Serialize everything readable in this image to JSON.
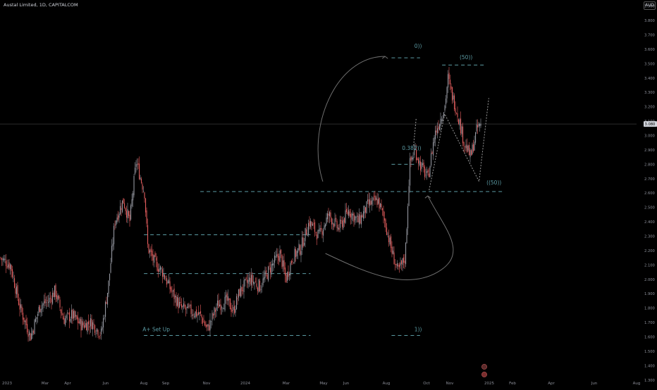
{
  "header": {
    "title": "Austal Limited, 1D, CAPITALCOM",
    "currency": "AUD"
  },
  "colors": {
    "background": "#000000",
    "up": "#9598a1",
    "down": "#e35d5d",
    "annotation": "#5b9aa3",
    "curve": "#6f6f6f",
    "axis_text": "#8c8f99"
  },
  "chart_data": {
    "type": "candlestick",
    "title": "Austal Limited, 1D, CAPITALCOM",
    "y_axis": {
      "range": [
        1.25,
        3.93
      ],
      "ticks": [
        "3.900",
        "3.800",
        "3.700",
        "3.600",
        "3.500",
        "3.400",
        "3.300",
        "3.200",
        "3.100",
        "3.000",
        "2.900",
        "2.800",
        "2.700",
        "2.600",
        "2.500",
        "2.400",
        "2.300",
        "2.200",
        "2.100",
        "2.000",
        "1.900",
        "1.800",
        "1.700",
        "1.600",
        "1.500",
        "1.400",
        "1.300"
      ],
      "current_price": "3.080"
    },
    "x_axis": {
      "ticks": [
        "2023",
        "Mar",
        "Apr",
        "Jun",
        "Aug",
        "Sep",
        "Nov",
        "2024",
        "Mar",
        "May",
        "Jun",
        "Aug",
        "Oct",
        "Nov",
        "2025",
        "Feb",
        "Apr",
        "Jun",
        "Aug"
      ]
    },
    "price_path": [
      [
        "2022-12-20",
        2.15
      ],
      [
        "2023-01-05",
        2.1
      ],
      [
        "2023-01-20",
        1.8
      ],
      [
        "2023-02-05",
        1.6
      ],
      [
        "2023-02-20",
        1.82
      ],
      [
        "2023-03-05",
        1.85
      ],
      [
        "2023-03-15",
        1.92
      ],
      [
        "2023-03-28",
        1.72
      ],
      [
        "2023-04-10",
        1.75
      ],
      [
        "2023-04-25",
        1.68
      ],
      [
        "2023-05-10",
        1.7
      ],
      [
        "2023-05-25",
        1.62
      ],
      [
        "2023-06-05",
        1.95
      ],
      [
        "2023-06-15",
        2.4
      ],
      [
        "2023-06-28",
        2.55
      ],
      [
        "2023-07-08",
        2.4
      ],
      [
        "2023-07-18",
        2.82
      ],
      [
        "2023-07-25",
        2.7
      ],
      [
        "2023-07-31",
        2.6
      ],
      [
        "2023-08-05",
        2.22
      ],
      [
        "2023-08-15",
        2.12
      ],
      [
        "2023-08-28",
        2.05
      ],
      [
        "2023-09-10",
        1.92
      ],
      [
        "2023-09-25",
        1.8
      ],
      [
        "2023-10-10",
        1.78
      ],
      [
        "2023-10-25",
        1.75
      ],
      [
        "2023-11-05",
        1.65
      ],
      [
        "2023-11-20",
        1.82
      ],
      [
        "2023-12-05",
        1.85
      ],
      [
        "2023-12-15",
        1.78
      ],
      [
        "2023-12-25",
        1.92
      ],
      [
        "2024-01-10",
        2.0
      ],
      [
        "2024-01-25",
        1.95
      ],
      [
        "2024-02-10",
        2.08
      ],
      [
        "2024-02-25",
        2.18
      ],
      [
        "2024-03-05",
        2.0
      ],
      [
        "2024-03-15",
        2.15
      ],
      [
        "2024-03-28",
        2.22
      ],
      [
        "2024-04-10",
        2.4
      ],
      [
        "2024-04-25",
        2.3
      ],
      [
        "2024-05-10",
        2.45
      ],
      [
        "2024-05-25",
        2.35
      ],
      [
        "2024-06-10",
        2.48
      ],
      [
        "2024-06-25",
        2.4
      ],
      [
        "2024-07-10",
        2.52
      ],
      [
        "2024-07-25",
        2.55
      ],
      [
        "2024-08-05",
        2.4
      ],
      [
        "2024-08-15",
        2.2
      ],
      [
        "2024-08-25",
        2.05
      ],
      [
        "2024-09-05",
        2.15
      ],
      [
        "2024-09-12",
        2.8
      ],
      [
        "2024-09-20",
        2.9
      ],
      [
        "2024-09-28",
        2.8
      ],
      [
        "2024-10-10",
        2.7
      ],
      [
        "2024-10-20",
        3.0
      ],
      [
        "2024-10-28",
        3.1
      ],
      [
        "2024-11-05",
        3.2
      ],
      [
        "2024-11-10",
        3.4
      ],
      [
        "2024-11-15",
        3.3
      ],
      [
        "2024-11-25",
        3.15
      ],
      [
        "2024-12-05",
        2.95
      ],
      [
        "2024-12-15",
        2.85
      ],
      [
        "2024-12-25",
        3.05
      ],
      [
        "2024-12-31",
        3.08
      ]
    ],
    "annotations": [
      {
        "text": "0))",
        "x": "2024-09-25",
        "y": 3.61
      },
      {
        "text": "(50))",
        "x": "2024-12-08",
        "y": 3.53
      },
      {
        "text": "0.382))",
        "x": "2024-09-15",
        "y": 2.9
      },
      {
        "text": "((50))",
        "x": "2025-01-20",
        "y": 2.66
      },
      {
        "text": "A+ Set Up",
        "x": "2023-08-18",
        "y": 1.64
      },
      {
        "text": "1))",
        "x": "2024-09-25",
        "y": 1.64
      }
    ],
    "levels": [
      {
        "y": 3.54,
        "from": "2024-08-15",
        "to": "2024-09-28"
      },
      {
        "y": 3.49,
        "from": "2024-11-01",
        "to": "2025-01-05"
      },
      {
        "y": 2.8,
        "from": "2024-08-15",
        "to": "2024-09-20"
      },
      {
        "y": 2.61,
        "from": "2023-10-25",
        "to": "2025-02-05"
      },
      {
        "y": 2.31,
        "from": "2023-07-30",
        "to": "2024-04-12"
      },
      {
        "y": 2.04,
        "from": "2023-07-30",
        "to": "2024-04-12"
      },
      {
        "y": 1.61,
        "from": "2023-07-30",
        "to": "2024-04-12"
      },
      {
        "y": 1.61,
        "from": "2024-08-15",
        "to": "2024-09-28"
      }
    ],
    "projection": [
      [
        "2024-10-12",
        2.62
      ],
      [
        "2024-11-05",
        3.15
      ],
      [
        "2024-12-28",
        2.68
      ],
      [
        "2025-01-12",
        3.26
      ]
    ],
    "grid": false,
    "legend": "none"
  }
}
